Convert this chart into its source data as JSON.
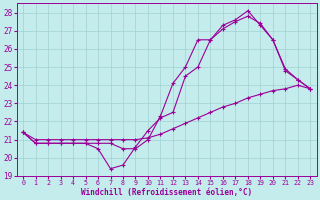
{
  "xlabel": "Windchill (Refroidissement éolien,°C)",
  "xlim": [
    -0.5,
    23.5
  ],
  "ylim": [
    19,
    28.5
  ],
  "xticks": [
    0,
    1,
    2,
    3,
    4,
    5,
    6,
    7,
    8,
    9,
    10,
    11,
    12,
    13,
    14,
    15,
    16,
    17,
    18,
    19,
    20,
    21,
    22,
    23
  ],
  "yticks": [
    19,
    20,
    21,
    22,
    23,
    24,
    25,
    26,
    27,
    28
  ],
  "bg_color": "#c5ecec",
  "grid_color": "#a0d0d0",
  "line_color": "#990099",
  "series": [
    {
      "x": [
        0,
        1,
        2,
        3,
        4,
        5,
        6,
        7,
        8,
        9,
        10,
        11,
        12,
        13,
        14,
        15,
        16,
        17,
        18,
        19,
        20,
        21,
        22,
        23
      ],
      "y": [
        21.4,
        20.8,
        20.8,
        20.8,
        20.8,
        20.8,
        20.5,
        19.4,
        19.6,
        20.6,
        21.5,
        22.2,
        22.5,
        24.5,
        25.0,
        26.5,
        27.3,
        27.6,
        28.1,
        27.3,
        26.5,
        24.8,
        24.3,
        23.8
      ]
    },
    {
      "x": [
        0,
        1,
        2,
        3,
        4,
        5,
        6,
        7,
        8,
        9,
        10,
        11,
        12,
        13,
        14,
        15,
        16,
        17,
        18,
        19,
        20,
        21,
        22,
        23
      ],
      "y": [
        21.4,
        20.8,
        20.8,
        20.8,
        20.8,
        20.8,
        20.8,
        20.8,
        20.5,
        20.5,
        21.0,
        22.3,
        24.1,
        25.0,
        26.5,
        26.5,
        27.1,
        27.5,
        27.8,
        27.4,
        26.5,
        24.9,
        24.3,
        23.8
      ]
    },
    {
      "x": [
        0,
        1,
        2,
        3,
        4,
        5,
        6,
        7,
        8,
        9,
        10,
        11,
        12,
        13,
        14,
        15,
        16,
        17,
        18,
        19,
        20,
        21,
        22,
        23
      ],
      "y": [
        21.4,
        21.0,
        21.0,
        21.0,
        21.0,
        21.0,
        21.0,
        21.0,
        21.0,
        21.0,
        21.1,
        21.3,
        21.6,
        21.9,
        22.2,
        22.5,
        22.8,
        23.0,
        23.3,
        23.5,
        23.7,
        23.8,
        24.0,
        23.8
      ]
    }
  ]
}
